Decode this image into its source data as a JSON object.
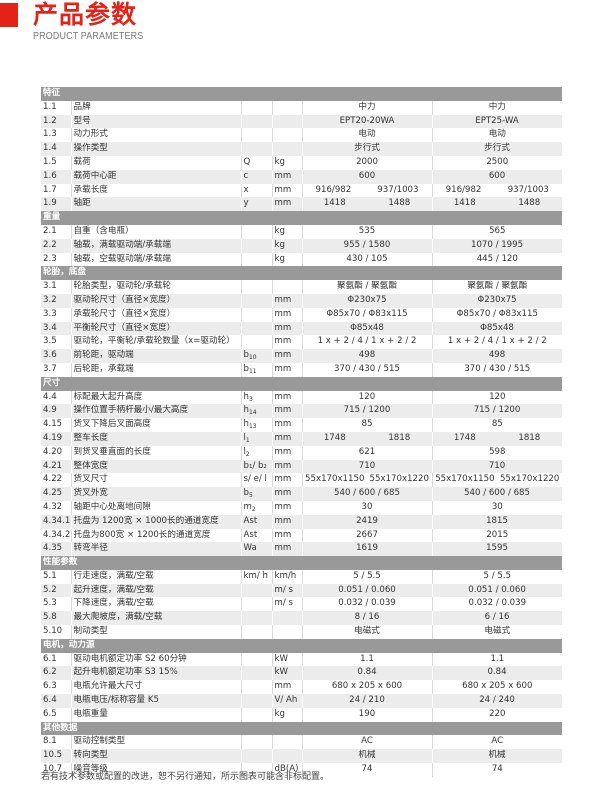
{
  "header": {
    "title": "产品参数",
    "subtitle": "PRODUCT PARAMETERS",
    "accent_color": "#e2231a"
  },
  "sections": [
    {
      "title": "特征",
      "rows": [
        {
          "no": "1.1",
          "desc": "品牌",
          "sym": "",
          "sub": "",
          "unit": "",
          "v1": "中力",
          "v2": "中力"
        },
        {
          "no": "1.2",
          "desc": "型号",
          "sym": "",
          "sub": "",
          "unit": "",
          "v1": "EPT20-20WA",
          "v2": "EPT25-WA"
        },
        {
          "no": "1.3",
          "desc": "动力形式",
          "sym": "",
          "sub": "",
          "unit": "",
          "v1": "电动",
          "v2": "电动"
        },
        {
          "no": "1.4",
          "desc": "操作类型",
          "sym": "",
          "sub": "",
          "unit": "",
          "v1": "步行式",
          "v2": "步行式"
        },
        {
          "no": "1.5",
          "desc": "载荷",
          "sym": "Q",
          "sub": "",
          "unit": "kg",
          "v1": "2000",
          "v2": "2500"
        },
        {
          "no": "1.6",
          "desc": "载荷中心距",
          "sym": "c",
          "sub": "",
          "unit": "mm",
          "v1": "600",
          "v2": "600"
        },
        {
          "no": "1.7",
          "desc": "承载长度",
          "sym": "x",
          "sub": "",
          "unit": "mm",
          "v1": [
            "916/982",
            "937/1003"
          ],
          "v2": [
            "916/982",
            "937/1003"
          ]
        },
        {
          "no": "1.9",
          "desc": "轴距",
          "sym": "y",
          "sub": "",
          "unit": "mm",
          "v1": [
            "1418",
            "1488"
          ],
          "v2": [
            "1418",
            "1488"
          ]
        }
      ]
    },
    {
      "title": "重量",
      "rows": [
        {
          "no": "2.1",
          "desc": "自重（含电瓶）",
          "sym": "",
          "sub": "",
          "unit": "kg",
          "v1": "535",
          "v2": "565"
        },
        {
          "no": "2.2",
          "desc": "轴载，满载驱动端/承载端",
          "sym": "",
          "sub": "",
          "unit": "kg",
          "v1": "955  /  1580",
          "v2": "1070  / 1995"
        },
        {
          "no": "2.3",
          "desc": "轴载，空载驱动端/承载端",
          "sym": "",
          "sub": "",
          "unit": "kg",
          "v1": "430  / 105",
          "v2": "445 / 120"
        }
      ]
    },
    {
      "title": "轮胎，底盘",
      "rows": [
        {
          "no": "3.1",
          "desc": "轮胎类型，驱动轮/承载轮",
          "sym": "",
          "sub": "",
          "unit": "",
          "v1": "聚氨酯 / 聚氨酯",
          "v2": "聚氨酯 / 聚氨酯"
        },
        {
          "no": "3.2",
          "desc": "驱动轮尺寸（直径×宽度）",
          "sym": "",
          "sub": "",
          "unit": "mm",
          "v1": "Φ230x75",
          "v2": "Φ230x75"
        },
        {
          "no": "3.3",
          "desc": "承载轮尺寸（直径×宽度）",
          "sym": "",
          "sub": "",
          "unit": "mm",
          "v1": "Φ85x70  /  Φ83x115",
          "v2": "Φ85x70  /  Φ83x115"
        },
        {
          "no": "3.4",
          "desc": "平衡轮尺寸（直径×宽度）",
          "sym": "",
          "sub": "",
          "unit": "mm",
          "v1": "Φ85x48",
          "v2": "Φ85x48"
        },
        {
          "no": "3.5",
          "desc": "驱动轮，平衡轮/承载轮数量（x=驱动轮）",
          "sym": "",
          "sub": "",
          "unit": "mm",
          "v1": "1 x + 2 / 4  /  1 x + 2 / 2",
          "v2": "1 x + 2 / 4  /  1 x + 2 / 2"
        },
        {
          "no": "3.6",
          "desc": "前轮距，驱动端",
          "sym": "b",
          "sub": "10",
          "unit": "mm",
          "v1": "498",
          "v2": "498"
        },
        {
          "no": "3.7",
          "desc": "后轮距，承载端",
          "sym": "b",
          "sub": "11",
          "unit": "mm",
          "v1": "370 / 430 /  515",
          "v2": "370 / 430 /  515"
        }
      ]
    },
    {
      "title": "尺寸",
      "rows": [
        {
          "no": "4.4",
          "desc": "标配最大起升高度",
          "sym": "h",
          "sub": "3",
          "unit": "mm",
          "v1": "120",
          "v2": "120"
        },
        {
          "no": "4.9",
          "desc": "操作位置手柄杆最小/最大高度",
          "sym": "h",
          "sub": "14",
          "unit": "mm",
          "v1": "715  / 1200",
          "v2": "715  / 1200"
        },
        {
          "no": "4.15",
          "desc": "货叉下降后叉面高度",
          "sym": "h",
          "sub": "13",
          "unit": "mm",
          "v1": "85",
          "v2": "85"
        },
        {
          "no": "4.19",
          "desc": "整车长度",
          "sym": "l",
          "sub": "1",
          "unit": "mm",
          "v1": [
            "1748",
            "1818"
          ],
          "v2": [
            "1748",
            "1818"
          ]
        },
        {
          "no": "4.20",
          "desc": "到货叉垂直面的长度",
          "sym": "l",
          "sub": "2",
          "unit": "mm",
          "v1": "621",
          "v2": "598"
        },
        {
          "no": "4.21",
          "desc": "整体宽度",
          "sym": "b₁/ b₂",
          "sub": "",
          "unit": "mm",
          "v1": "710",
          "v2": "710"
        },
        {
          "no": "4.22",
          "desc": "货叉尺寸",
          "sym": "s/ e/ l",
          "sub": "",
          "unit": "mm",
          "v1": [
            "55x170x1150",
            "55x170x1220"
          ],
          "v2": [
            "55x170x1150",
            "55x170x1220"
          ]
        },
        {
          "no": "4.25",
          "desc": "货叉外宽",
          "sym": "b",
          "sub": "5",
          "unit": "mm",
          "v1": "540  /  600  /  685",
          "v2": "540  /  600  /  685"
        },
        {
          "no": "4.32",
          "desc": "轴距中心处离地间隙",
          "sym": "m",
          "sub": "2",
          "unit": "mm",
          "v1": "30",
          "v2": "30"
        },
        {
          "no": "4.34.1",
          "desc": "托盘为 1200宽 × 1000长的通道宽度",
          "sym": "Ast",
          "sub": "",
          "unit": "mm",
          "v1": "2419",
          "v2": "1815"
        },
        {
          "no": "4.34.2",
          "desc": "托盘为800宽 × 1200长的通道宽度",
          "sym": "Ast",
          "sub": "",
          "unit": "mm",
          "v1": "2667",
          "v2": "2015"
        },
        {
          "no": "4.35",
          "desc": "转弯半径",
          "sym": "Wa",
          "sub": "",
          "unit": "mm",
          "v1": "1619",
          "v2": "1595"
        }
      ]
    },
    {
      "title": "性能参数",
      "rows": [
        {
          "no": "5.1",
          "desc": "行走速度，满载/空载",
          "sym": "km/ h",
          "sub": "",
          "unit": "km/h",
          "v1": "5 /  5.5",
          "v2": "5 /  5.5"
        },
        {
          "no": "5.2",
          "desc": "起升速度，满载/空载",
          "sym": "",
          "sub": "",
          "unit": "m/ s",
          "v1": "0.051  /  0.060",
          "v2": "0.051  /  0.060"
        },
        {
          "no": "5.3",
          "desc": "下降速度，满载/空载",
          "sym": "",
          "sub": "",
          "unit": "m/ s",
          "v1": "0.032  /  0.039",
          "v2": "0.032  /  0.039"
        },
        {
          "no": "5.8",
          "desc": "最大爬坡度，满载/空载",
          "sym": "",
          "sub": "",
          "unit": "",
          "v1": "8  / 16",
          "v2": "6  / 16"
        },
        {
          "no": "5.10",
          "desc": "制动类型",
          "sym": "",
          "sub": "",
          "unit": "",
          "v1": "电磁式",
          "v2": "电磁式"
        }
      ]
    },
    {
      "title": "电机，动力源",
      "rows": [
        {
          "no": "6.1",
          "desc": "驱动电机额定功率 S2 60分钟",
          "sym": "",
          "sub": "",
          "unit": "kW",
          "v1": "1.1",
          "v2": "1.1"
        },
        {
          "no": "6.2",
          "desc": "起升电机额定功率 S3 15%",
          "sym": "",
          "sub": "",
          "unit": "kW",
          "v1": "0.84",
          "v2": "0.84"
        },
        {
          "no": "6.3",
          "desc": "电瓶允许最大尺寸",
          "sym": "",
          "sub": "",
          "unit": "mm",
          "v1": "680 x 205 x 600",
          "v2": "680 x 205 x 600"
        },
        {
          "no": "6.4",
          "desc": "电瓶电压/标称容量 K5",
          "sym": "",
          "sub": "",
          "unit": "V/ Ah",
          "v1": "24 / 210",
          "v2": "24  / 240"
        },
        {
          "no": "6.5",
          "desc": "电瓶重量",
          "sym": "",
          "sub": "",
          "unit": "kg",
          "v1": "190",
          "v2": "220"
        }
      ]
    },
    {
      "title": "其他数据",
      "rows": [
        {
          "no": "8.1",
          "desc": "驱动控制类型",
          "sym": "",
          "sub": "",
          "unit": "",
          "v1": "AC",
          "v2": "AC"
        },
        {
          "no": "10.5",
          "desc": "转向类型",
          "sym": "",
          "sub": "",
          "unit": "",
          "v1": "机械",
          "v2": "机械"
        },
        {
          "no": "10.7",
          "desc": "噪音等级",
          "sym": "",
          "sub": "",
          "unit": "dB(A)",
          "v1": "74",
          "v2": "74"
        }
      ]
    }
  ],
  "footer": "若有技术参数或配置的改进，恕不另行通知，所示图表可能含非标配置。"
}
